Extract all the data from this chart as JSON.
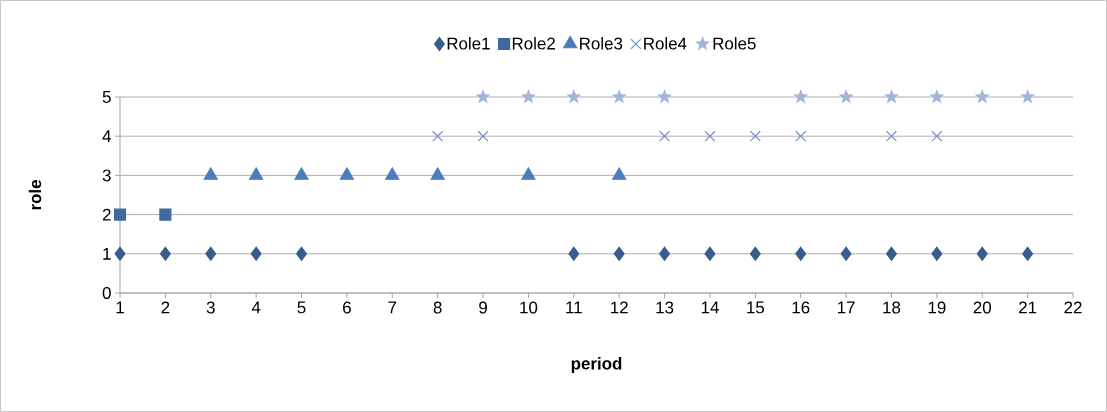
{
  "chart_data": {
    "type": "scatter",
    "xlabel": "period",
    "ylabel": "role",
    "xlim": [
      1,
      22
    ],
    "ylim": [
      0,
      5
    ],
    "xticks": [
      1,
      2,
      3,
      4,
      5,
      6,
      7,
      8,
      9,
      10,
      11,
      12,
      13,
      14,
      15,
      16,
      17,
      18,
      19,
      20,
      21,
      22
    ],
    "yticks": [
      0,
      1,
      2,
      3,
      4,
      5
    ],
    "grid": "y",
    "legend": "top",
    "series": [
      {
        "name": "Role1",
        "color": "#385d8a",
        "marker": "diamond",
        "x": [
          1,
          2,
          3,
          4,
          5,
          11,
          12,
          13,
          14,
          15,
          16,
          17,
          18,
          19,
          20,
          21
        ],
        "values": [
          1,
          1,
          1,
          1,
          1,
          1,
          1,
          1,
          1,
          1,
          1,
          1,
          1,
          1,
          1,
          1
        ]
      },
      {
        "name": "Role2",
        "color": "#3f69a0",
        "marker": "square",
        "x": [
          1,
          2
        ],
        "values": [
          2,
          2
        ]
      },
      {
        "name": "Role3",
        "color": "#4a7ebb",
        "marker": "triangle",
        "x": [
          3,
          4,
          5,
          6,
          7,
          8,
          10,
          12
        ],
        "values": [
          3,
          3,
          3,
          3,
          3,
          3,
          3,
          3
        ]
      },
      {
        "name": "Role4",
        "color": "#7190c6",
        "marker": "cross",
        "x": [
          8,
          9,
          13,
          14,
          15,
          16,
          18,
          19
        ],
        "values": [
          4,
          4,
          4,
          4,
          4,
          4,
          4,
          4
        ]
      },
      {
        "name": "Role5",
        "color": "#a3b6da",
        "marker": "star",
        "x": [
          9,
          10,
          11,
          12,
          13,
          16,
          17,
          18,
          19,
          20,
          21
        ],
        "values": [
          5,
          5,
          5,
          5,
          5,
          5,
          5,
          5,
          5,
          5,
          5
        ]
      }
    ]
  }
}
